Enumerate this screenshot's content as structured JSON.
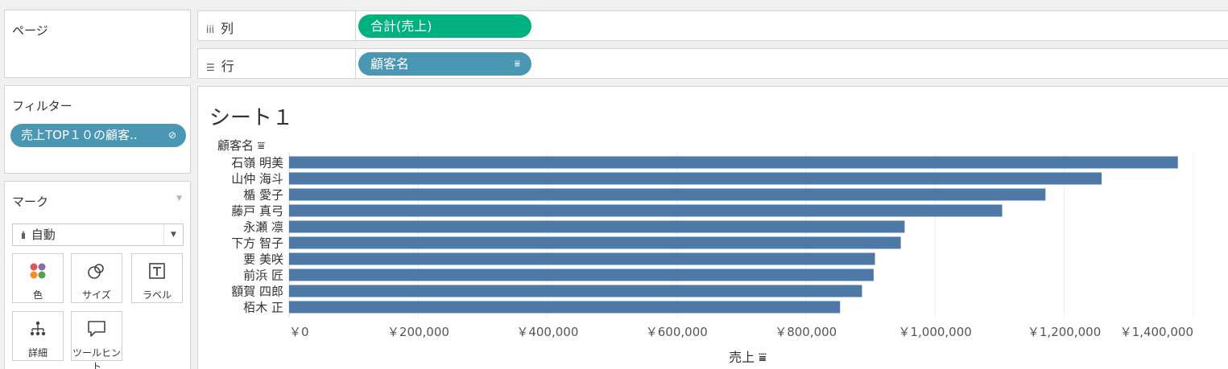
{
  "pages": {
    "title": "ページ"
  },
  "filters": {
    "title": "フィルター",
    "pill_label": "売上TOP１０の顧客..",
    "pill_icon": "link-icon"
  },
  "marks": {
    "title": "マーク",
    "mark_type": "自動",
    "buttons": [
      {
        "label": "色",
        "icon": "color-icon"
      },
      {
        "label": "サイズ",
        "icon": "size-icon"
      },
      {
        "label": "ラベル",
        "icon": "label-icon"
      },
      {
        "label": "詳細",
        "icon": "detail-icon"
      },
      {
        "label": "ツールヒント",
        "icon": "tooltip-icon"
      }
    ]
  },
  "shelves": {
    "columns": {
      "label": "列",
      "pill": "合計(売上)"
    },
    "rows": {
      "label": "行",
      "pill": "顧客名"
    }
  },
  "colors": {
    "bar": "#4e79a7",
    "green_pill": "#00b180",
    "blue_pill": "#4a97b3"
  },
  "sheet": {
    "title": "シート１"
  },
  "chart_data": {
    "type": "bar",
    "orientation": "horizontal",
    "row_header": "顧客名",
    "xlabel": "売上",
    "categories": [
      "石嶺 明美",
      "山仲 海斗",
      "楯 愛子",
      "藤戸 真弓",
      "永瀬 凛",
      "下方 智子",
      "要 美咲",
      "前浜 匠",
      "額賀 四郎",
      "栢木 正"
    ],
    "values": [
      1376000,
      1258000,
      1171000,
      1104000,
      953000,
      947000,
      907000,
      905000,
      887000,
      853000
    ],
    "xlim": [
      0,
      1400000
    ],
    "ticks": [
      0,
      200000,
      400000,
      600000,
      800000,
      1000000,
      1200000,
      1400000
    ],
    "tick_labels": [
      "￥0",
      "￥200,000",
      "￥400,000",
      "￥600,000",
      "￥800,000",
      "￥1,000,000",
      "￥1,200,000",
      "￥1,400,000"
    ],
    "grid": true
  }
}
